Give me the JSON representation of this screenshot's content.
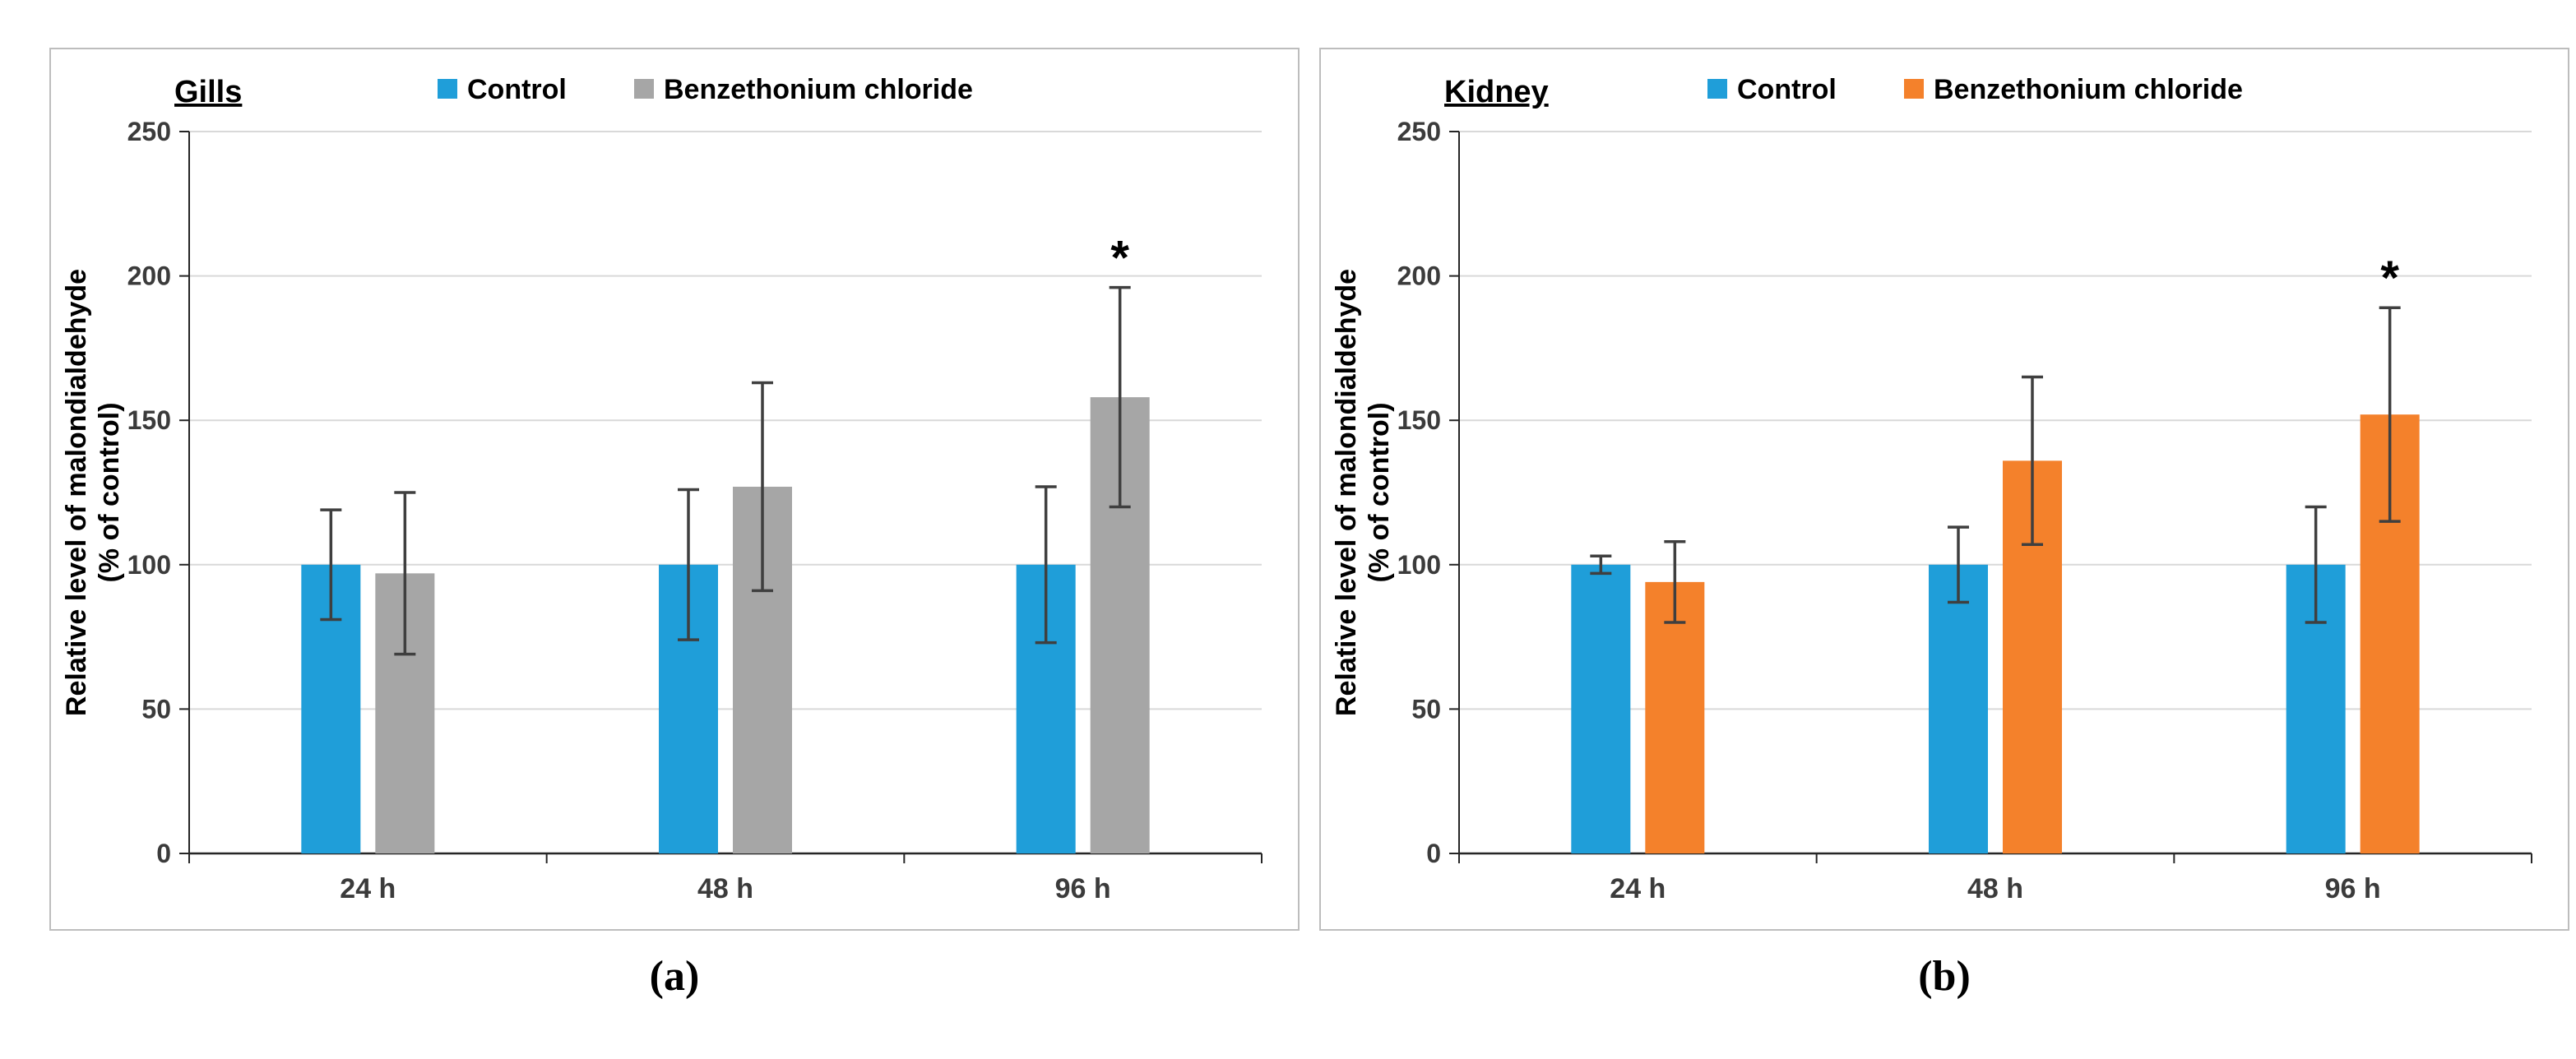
{
  "figure": {
    "captions": {
      "a": "(a)",
      "b": "(b)"
    }
  },
  "chart_data": [
    {
      "type": "bar",
      "panel": "a",
      "title": "Gills",
      "title_underline": true,
      "ylabel_line1": "Relative level of malondialdehyde",
      "ylabel_line2": "(% of control)",
      "categories": [
        "24 h",
        "48 h",
        "96 h"
      ],
      "series": [
        {
          "name": "Control",
          "color": "#1F9ED9",
          "values": [
            100,
            100,
            100
          ],
          "errors": [
            19,
            26,
            27
          ]
        },
        {
          "name": "Benzethonium chloride",
          "color": "#A6A6A6",
          "values": [
            97,
            127,
            158
          ],
          "errors": [
            28,
            36,
            38
          ]
        }
      ],
      "annotations": [
        {
          "category": "96 h",
          "series": "Benzethonium chloride",
          "text": "*"
        }
      ],
      "ylim": [
        0,
        250
      ],
      "yticks": [
        0,
        50,
        100,
        150,
        200,
        250
      ],
      "grid": true,
      "legend_position": "top",
      "grid_color": "#d9d9d9",
      "axis_color": "#262626",
      "error_bar_color": "#3f3f3f"
    },
    {
      "type": "bar",
      "panel": "b",
      "title": "Kidney",
      "title_underline": true,
      "ylabel_line1": "Relative level of malondialdehyde",
      "ylabel_line2": "(% of control)",
      "categories": [
        "24 h",
        "48 h",
        "96 h"
      ],
      "series": [
        {
          "name": "Control",
          "color": "#1F9ED9",
          "values": [
            100,
            100,
            100
          ],
          "errors": [
            3,
            13,
            20
          ]
        },
        {
          "name": "Benzethonium chloride",
          "color": "#F4812B",
          "values": [
            94,
            136,
            152
          ],
          "errors": [
            14,
            29,
            37
          ]
        }
      ],
      "annotations": [
        {
          "category": "96 h",
          "series": "Benzethonium chloride",
          "text": "*"
        }
      ],
      "ylim": [
        0,
        250
      ],
      "yticks": [
        0,
        50,
        100,
        150,
        200,
        250
      ],
      "grid": true,
      "legend_position": "top",
      "grid_color": "#d9d9d9",
      "axis_color": "#262626",
      "error_bar_color": "#3f3f3f"
    }
  ]
}
